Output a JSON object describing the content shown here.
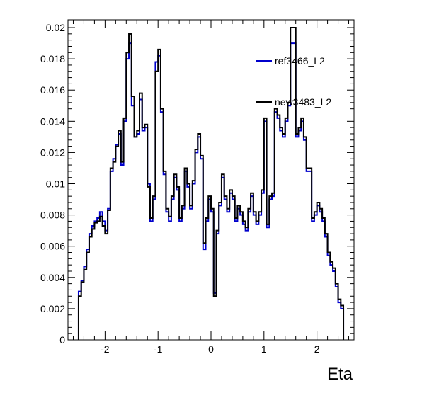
{
  "chart_data": {
    "type": "line",
    "title": "",
    "xlabel": "Eta",
    "ylabel": "",
    "xlim": [
      -2.7,
      2.7
    ],
    "ylim": [
      0,
      0.0205
    ],
    "x_ticks": [
      -2,
      -1,
      0,
      1,
      2
    ],
    "x_tick_labels": [
      "-2",
      "-1",
      "0",
      "1",
      "2"
    ],
    "y_ticks": [
      0,
      0.002,
      0.004,
      0.006,
      0.008,
      0.01,
      0.012,
      0.014,
      0.016,
      0.018,
      0.02
    ],
    "y_tick_labels": [
      "0",
      "0.002",
      "0.004",
      "0.006",
      "0.008",
      "0.01",
      "0.012",
      "0.014",
      "0.016",
      "0.018",
      "0.02"
    ],
    "grid": false,
    "legend_position": "top-right",
    "bin_edges": [
      -2.5,
      -2.45,
      -2.4,
      -2.35,
      -2.3,
      -2.25,
      -2.2,
      -2.15,
      -2.1,
      -2.05,
      -2.0,
      -1.95,
      -1.9,
      -1.85,
      -1.8,
      -1.75,
      -1.7,
      -1.65,
      -1.6,
      -1.55,
      -1.5,
      -1.45,
      -1.4,
      -1.35,
      -1.3,
      -1.25,
      -1.2,
      -1.15,
      -1.1,
      -1.05,
      -1.0,
      -0.95,
      -0.9,
      -0.85,
      -0.8,
      -0.75,
      -0.7,
      -0.65,
      -0.6,
      -0.55,
      -0.5,
      -0.45,
      -0.4,
      -0.35,
      -0.3,
      -0.25,
      -0.2,
      -0.15,
      -0.1,
      -0.05,
      0.0,
      0.05,
      0.1,
      0.15,
      0.2,
      0.25,
      0.3,
      0.35,
      0.4,
      0.45,
      0.5,
      0.55,
      0.6,
      0.65,
      0.7,
      0.75,
      0.8,
      0.85,
      0.9,
      0.95,
      1.0,
      1.05,
      1.1,
      1.15,
      1.2,
      1.25,
      1.3,
      1.35,
      1.4,
      1.45,
      1.5,
      1.55,
      1.6,
      1.65,
      1.7,
      1.75,
      1.8,
      1.85,
      1.9,
      1.95,
      2.0,
      2.05,
      2.1,
      2.15,
      2.2,
      2.25,
      2.3,
      2.35,
      2.4,
      2.45,
      2.5
    ],
    "series": [
      {
        "name": "ref3466_L2",
        "color": "#0000cc",
        "values": [
          0.0031,
          0.0038,
          0.0047,
          0.0058,
          0.0068,
          0.0073,
          0.0076,
          0.0078,
          0.0082,
          0.0076,
          0.007,
          0.0084,
          0.0108,
          0.0116,
          0.0125,
          0.0132,
          0.0112,
          0.014,
          0.018,
          0.019,
          0.015,
          0.013,
          0.0132,
          0.0154,
          0.0134,
          0.0136,
          0.01,
          0.0076,
          0.009,
          0.0178,
          0.0182,
          0.0146,
          0.0106,
          0.0082,
          0.0076,
          0.009,
          0.0104,
          0.0096,
          0.0076,
          0.0084,
          0.0108,
          0.0098,
          0.0084,
          0.01,
          0.012,
          0.013,
          0.0116,
          0.0058,
          0.0076,
          0.009,
          0.0082,
          0.003,
          0.0068,
          0.0086,
          0.0104,
          0.009,
          0.0082,
          0.0094,
          0.009,
          0.0076,
          0.0084,
          0.008,
          0.0074,
          0.007,
          0.0082,
          0.0092,
          0.008,
          0.0074,
          0.008,
          0.0094,
          0.014,
          0.0072,
          0.009,
          0.0092,
          0.0146,
          0.0142,
          0.0134,
          0.013,
          0.014,
          0.015,
          0.019,
          0.019,
          0.013,
          0.0134,
          0.014,
          0.0128,
          0.0108,
          0.0108,
          0.0076,
          0.008,
          0.0086,
          0.0082,
          0.0076,
          0.0066,
          0.0054,
          0.0048,
          0.0044,
          0.0034,
          0.0024,
          0.002
        ]
      },
      {
        "name": "new3483_L2",
        "color": "#000000",
        "values": [
          0.0028,
          0.0037,
          0.0045,
          0.0056,
          0.0066,
          0.0071,
          0.0075,
          0.0076,
          0.0079,
          0.0073,
          0.0068,
          0.0083,
          0.011,
          0.0114,
          0.0124,
          0.0134,
          0.0114,
          0.0142,
          0.0184,
          0.0196,
          0.0156,
          0.013,
          0.0134,
          0.0158,
          0.0136,
          0.0138,
          0.0098,
          0.0078,
          0.0092,
          0.0172,
          0.0186,
          0.0148,
          0.0108,
          0.0084,
          0.0079,
          0.0092,
          0.0106,
          0.0098,
          0.0078,
          0.0086,
          0.011,
          0.01,
          0.0086,
          0.0102,
          0.0122,
          0.0132,
          0.0118,
          0.0062,
          0.0078,
          0.0092,
          0.0084,
          0.0028,
          0.007,
          0.0088,
          0.0106,
          0.0092,
          0.0084,
          0.0096,
          0.0092,
          0.0078,
          0.0086,
          0.0082,
          0.0076,
          0.0072,
          0.0084,
          0.0094,
          0.0082,
          0.0076,
          0.0082,
          0.0096,
          0.0142,
          0.0074,
          0.0092,
          0.0094,
          0.0148,
          0.0144,
          0.0136,
          0.0132,
          0.0142,
          0.0152,
          0.02,
          0.02,
          0.0132,
          0.0136,
          0.0142,
          0.013,
          0.011,
          0.011,
          0.0078,
          0.0082,
          0.0088,
          0.0084,
          0.0078,
          0.0068,
          0.0056,
          0.005,
          0.0046,
          0.0036,
          0.0026,
          0.0022
        ]
      }
    ]
  }
}
